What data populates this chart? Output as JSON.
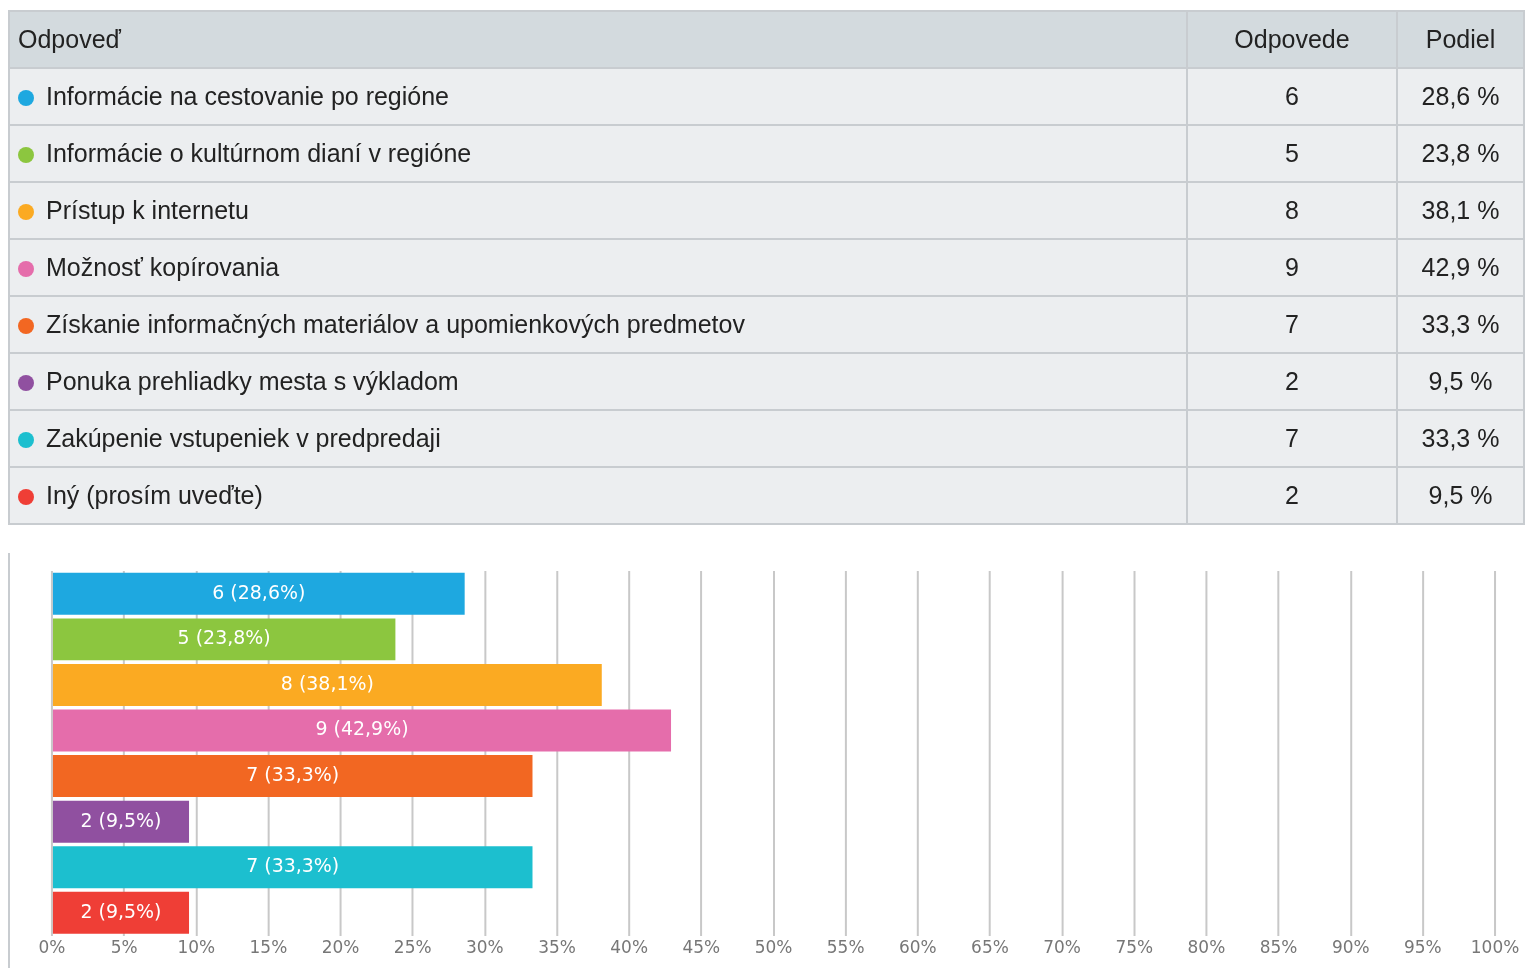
{
  "chart_data": {
    "type": "bar",
    "orientation": "horizontal",
    "stacked": true,
    "legend": "top",
    "categories": [
      null,
      null,
      null,
      null,
      null,
      null,
      null,
      null
    ],
    "series": [
      {
        "name": "Informácie na cestovanie po regióne",
        "color": "#1ea8e0",
        "values": [
          28.6,
          null,
          null,
          null,
          null,
          null,
          null,
          null
        ],
        "value_labels": [
          "6 (28,6%)",
          null,
          null,
          null,
          null,
          null,
          null,
          null
        ]
      },
      {
        "name": "Informácie o kultúrnom dianí v regióne",
        "color": "#8cc63f",
        "values": [
          null,
          23.8,
          null,
          null,
          null,
          null,
          null,
          null
        ],
        "value_labels": [
          null,
          "5 (23,8%)",
          null,
          null,
          null,
          null,
          null,
          null
        ]
      },
      {
        "name": "Prístup k internetu",
        "color": "#fbaa22",
        "values": [
          null,
          null,
          38.1,
          null,
          null,
          null,
          null,
          null
        ],
        "value_labels": [
          null,
          null,
          "8 (38,1%)",
          null,
          null,
          null,
          null,
          null
        ]
      },
      {
        "name": "Možnosť kopírovania",
        "color": "#e56dab",
        "values": [
          null,
          null,
          null,
          42.9,
          null,
          null,
          null,
          null
        ],
        "value_labels": [
          null,
          null,
          null,
          "9 (42,9%)",
          null,
          null,
          null,
          null
        ]
      },
      {
        "name": "Získanie informačných materiálov a upomienkových predmetov",
        "color": "#f26722",
        "values": [
          null,
          null,
          null,
          null,
          33.3,
          null,
          null,
          null
        ],
        "value_labels": [
          null,
          null,
          null,
          null,
          "7 (33,3%)",
          null,
          null,
          null
        ]
      },
      {
        "name": "Ponuka prehliadky mesta s výkladom",
        "color": "#9050a0",
        "values": [
          null,
          null,
          null,
          null,
          null,
          9.5,
          null,
          null
        ],
        "value_labels": [
          null,
          null,
          null,
          null,
          null,
          "2 (9,5%)",
          null,
          null
        ]
      },
      {
        "name": "Zakúpenie vstupeniek v predpredaji",
        "color": "#1cbfcf",
        "values": [
          null,
          null,
          null,
          null,
          null,
          null,
          33.3,
          null
        ],
        "value_labels": [
          null,
          null,
          null,
          null,
          null,
          null,
          "7 (33,3%)",
          null
        ]
      },
      {
        "name": "Iný (prosím uveďte)",
        "color": "#ef3e36",
        "values": [
          null,
          null,
          null,
          null,
          null,
          null,
          null,
          9.5
        ],
        "value_labels": [
          null,
          null,
          null,
          null,
          null,
          null,
          null,
          "2 (9,5%)"
        ]
      }
    ],
    "xlim": [
      0,
      100
    ],
    "xticks": [
      {
        "value": 0,
        "label": "0%"
      },
      {
        "value": 5,
        "label": "5%"
      },
      {
        "value": 10,
        "label": "10%"
      },
      {
        "value": 15,
        "label": "15%"
      },
      {
        "value": 20,
        "label": "20%"
      },
      {
        "value": 25,
        "label": "25%"
      },
      {
        "value": 30,
        "label": "30%"
      },
      {
        "value": 35,
        "label": "35%"
      },
      {
        "value": 40,
        "label": "40%"
      },
      {
        "value": 45,
        "label": "45%"
      },
      {
        "value": 50,
        "label": "50%"
      },
      {
        "value": 55,
        "label": "55%"
      },
      {
        "value": 60,
        "label": "60%"
      },
      {
        "value": 65,
        "label": "65%"
      },
      {
        "value": 70,
        "label": "70%"
      },
      {
        "value": 75,
        "label": "75%"
      },
      {
        "value": 80,
        "label": "80%"
      },
      {
        "value": 85,
        "label": "85%"
      },
      {
        "value": 90,
        "label": "90%"
      },
      {
        "value": 95,
        "label": "95%"
      },
      {
        "value": 100,
        "label": "100%"
      }
    ],
    "grid": "x",
    "tick_labels": "x",
    "annotations": [
      "Odpoveď",
      "Odpovede",
      "Podiel",
      "6",
      "28,6 %",
      "5",
      "23,8 %",
      "8",
      "38,1 %",
      "9",
      "42,9 %",
      "7",
      "33,3 %",
      "2",
      "9,5 %",
      "7",
      "33,3 %",
      "2",
      "9,5 %"
    ]
  }
}
